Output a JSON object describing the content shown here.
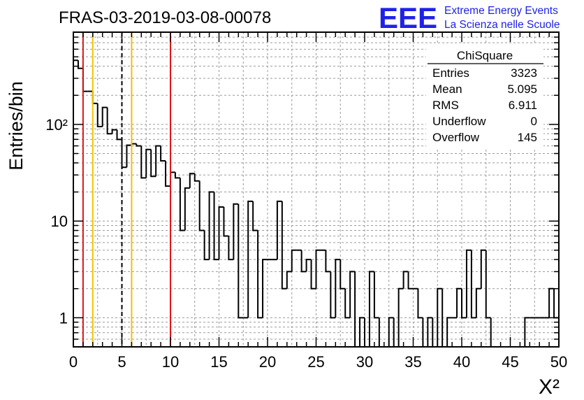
{
  "header": {
    "run_title": "FRAS-03-2019-03-08-00078",
    "logo_mark": "EEE",
    "logo_line1": "Extreme Energy Events",
    "logo_line2": "La Scienza nelle Scuole"
  },
  "stats_box": {
    "title": "ChiSquare",
    "rows": [
      {
        "label": "Entries",
        "value": "3323"
      },
      {
        "label": "Mean",
        "value": "5.095"
      },
      {
        "label": "RMS",
        "value": "6.911"
      },
      {
        "label": "Underflow",
        "value": "0"
      },
      {
        "label": "Overflow",
        "value": "145"
      }
    ]
  },
  "colors": {
    "histogram": "#000000",
    "red_line": "#e01414",
    "yellow_line": "#f2c200",
    "dashed_line": "#000000",
    "grid": "#9a9a9a",
    "logo": "#1f22e6"
  },
  "chart_data": {
    "type": "histogram",
    "title": "FRAS-03-2019-03-08-00078",
    "xlabel": "X²",
    "ylabel": "Entries/bin",
    "xlim": [
      0,
      50
    ],
    "ylim": [
      0.5,
      900
    ],
    "yscale": "log",
    "grid": true,
    "bin_width": 0.5,
    "x_ticks": [
      0,
      5,
      10,
      15,
      20,
      25,
      30,
      35,
      40,
      45,
      50
    ],
    "y_ticks": [
      {
        "value": 1,
        "label": "1"
      },
      {
        "value": 10,
        "label": "10"
      },
      {
        "value": 100,
        "label": "10²"
      }
    ],
    "bin_counts": [
      460,
      380,
      220,
      220,
      165,
      95,
      150,
      80,
      88,
      70,
      36,
      61,
      63,
      60,
      28,
      55,
      29,
      60,
      42,
      23,
      32,
      28,
      8,
      22,
      31,
      26,
      8,
      4,
      20,
      4,
      14,
      7,
      4,
      15,
      1,
      1,
      16,
      8,
      1,
      4,
      4,
      4,
      16,
      2,
      3,
      5,
      5,
      3,
      4,
      2,
      5,
      5,
      3,
      1,
      4,
      2,
      1,
      3,
      0.4,
      1,
      0.4,
      3,
      1,
      0.4,
      0.4,
      1,
      0.4,
      2,
      3,
      2,
      2,
      1,
      0.4,
      1,
      0.4,
      2,
      0.4,
      1,
      1,
      2,
      1,
      5,
      1,
      2,
      5,
      1,
      0.4,
      0.4,
      0.4,
      0.4,
      0.4,
      0.4,
      0.4,
      1,
      1,
      1,
      1,
      1,
      2,
      1
    ],
    "vertical_lines": [
      {
        "x": 1,
        "style": "solid",
        "color": "red"
      },
      {
        "x": 2,
        "style": "solid",
        "color": "yellow"
      },
      {
        "x": 5,
        "style": "dashed",
        "color": "black"
      },
      {
        "x": 6,
        "style": "solid",
        "color": "yellow"
      },
      {
        "x": 10,
        "style": "solid",
        "color": "red"
      }
    ]
  }
}
